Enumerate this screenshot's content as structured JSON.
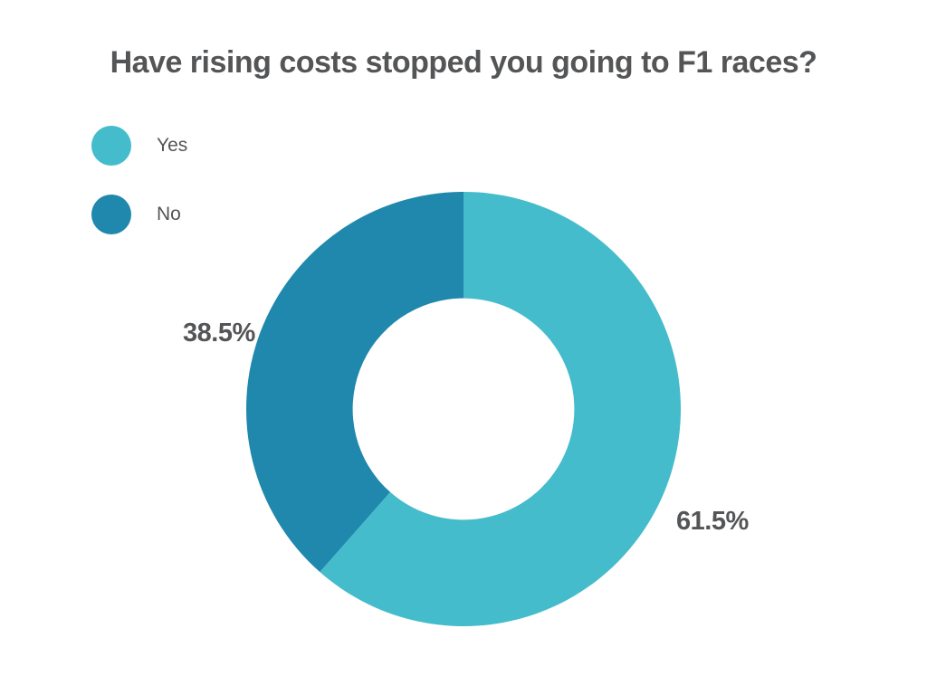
{
  "page": {
    "background": "#ffffff"
  },
  "chart_data": {
    "type": "pie",
    "subtype": "donut",
    "title": "Have rising costs stopped you going to F1 races?",
    "categories": [
      "Yes",
      "No"
    ],
    "values": [
      61.5,
      38.5
    ],
    "unit": "%",
    "labels": [
      "61.5%",
      "38.5%"
    ],
    "colors": [
      "#45BCCB",
      "#1F88AC"
    ],
    "title_color": "#545557",
    "label_color": "#545557",
    "start_angle_deg": 0,
    "direction": "clockwise",
    "inner_radius_ratio": 0.51,
    "legend_position": "top-left",
    "grid": false
  }
}
